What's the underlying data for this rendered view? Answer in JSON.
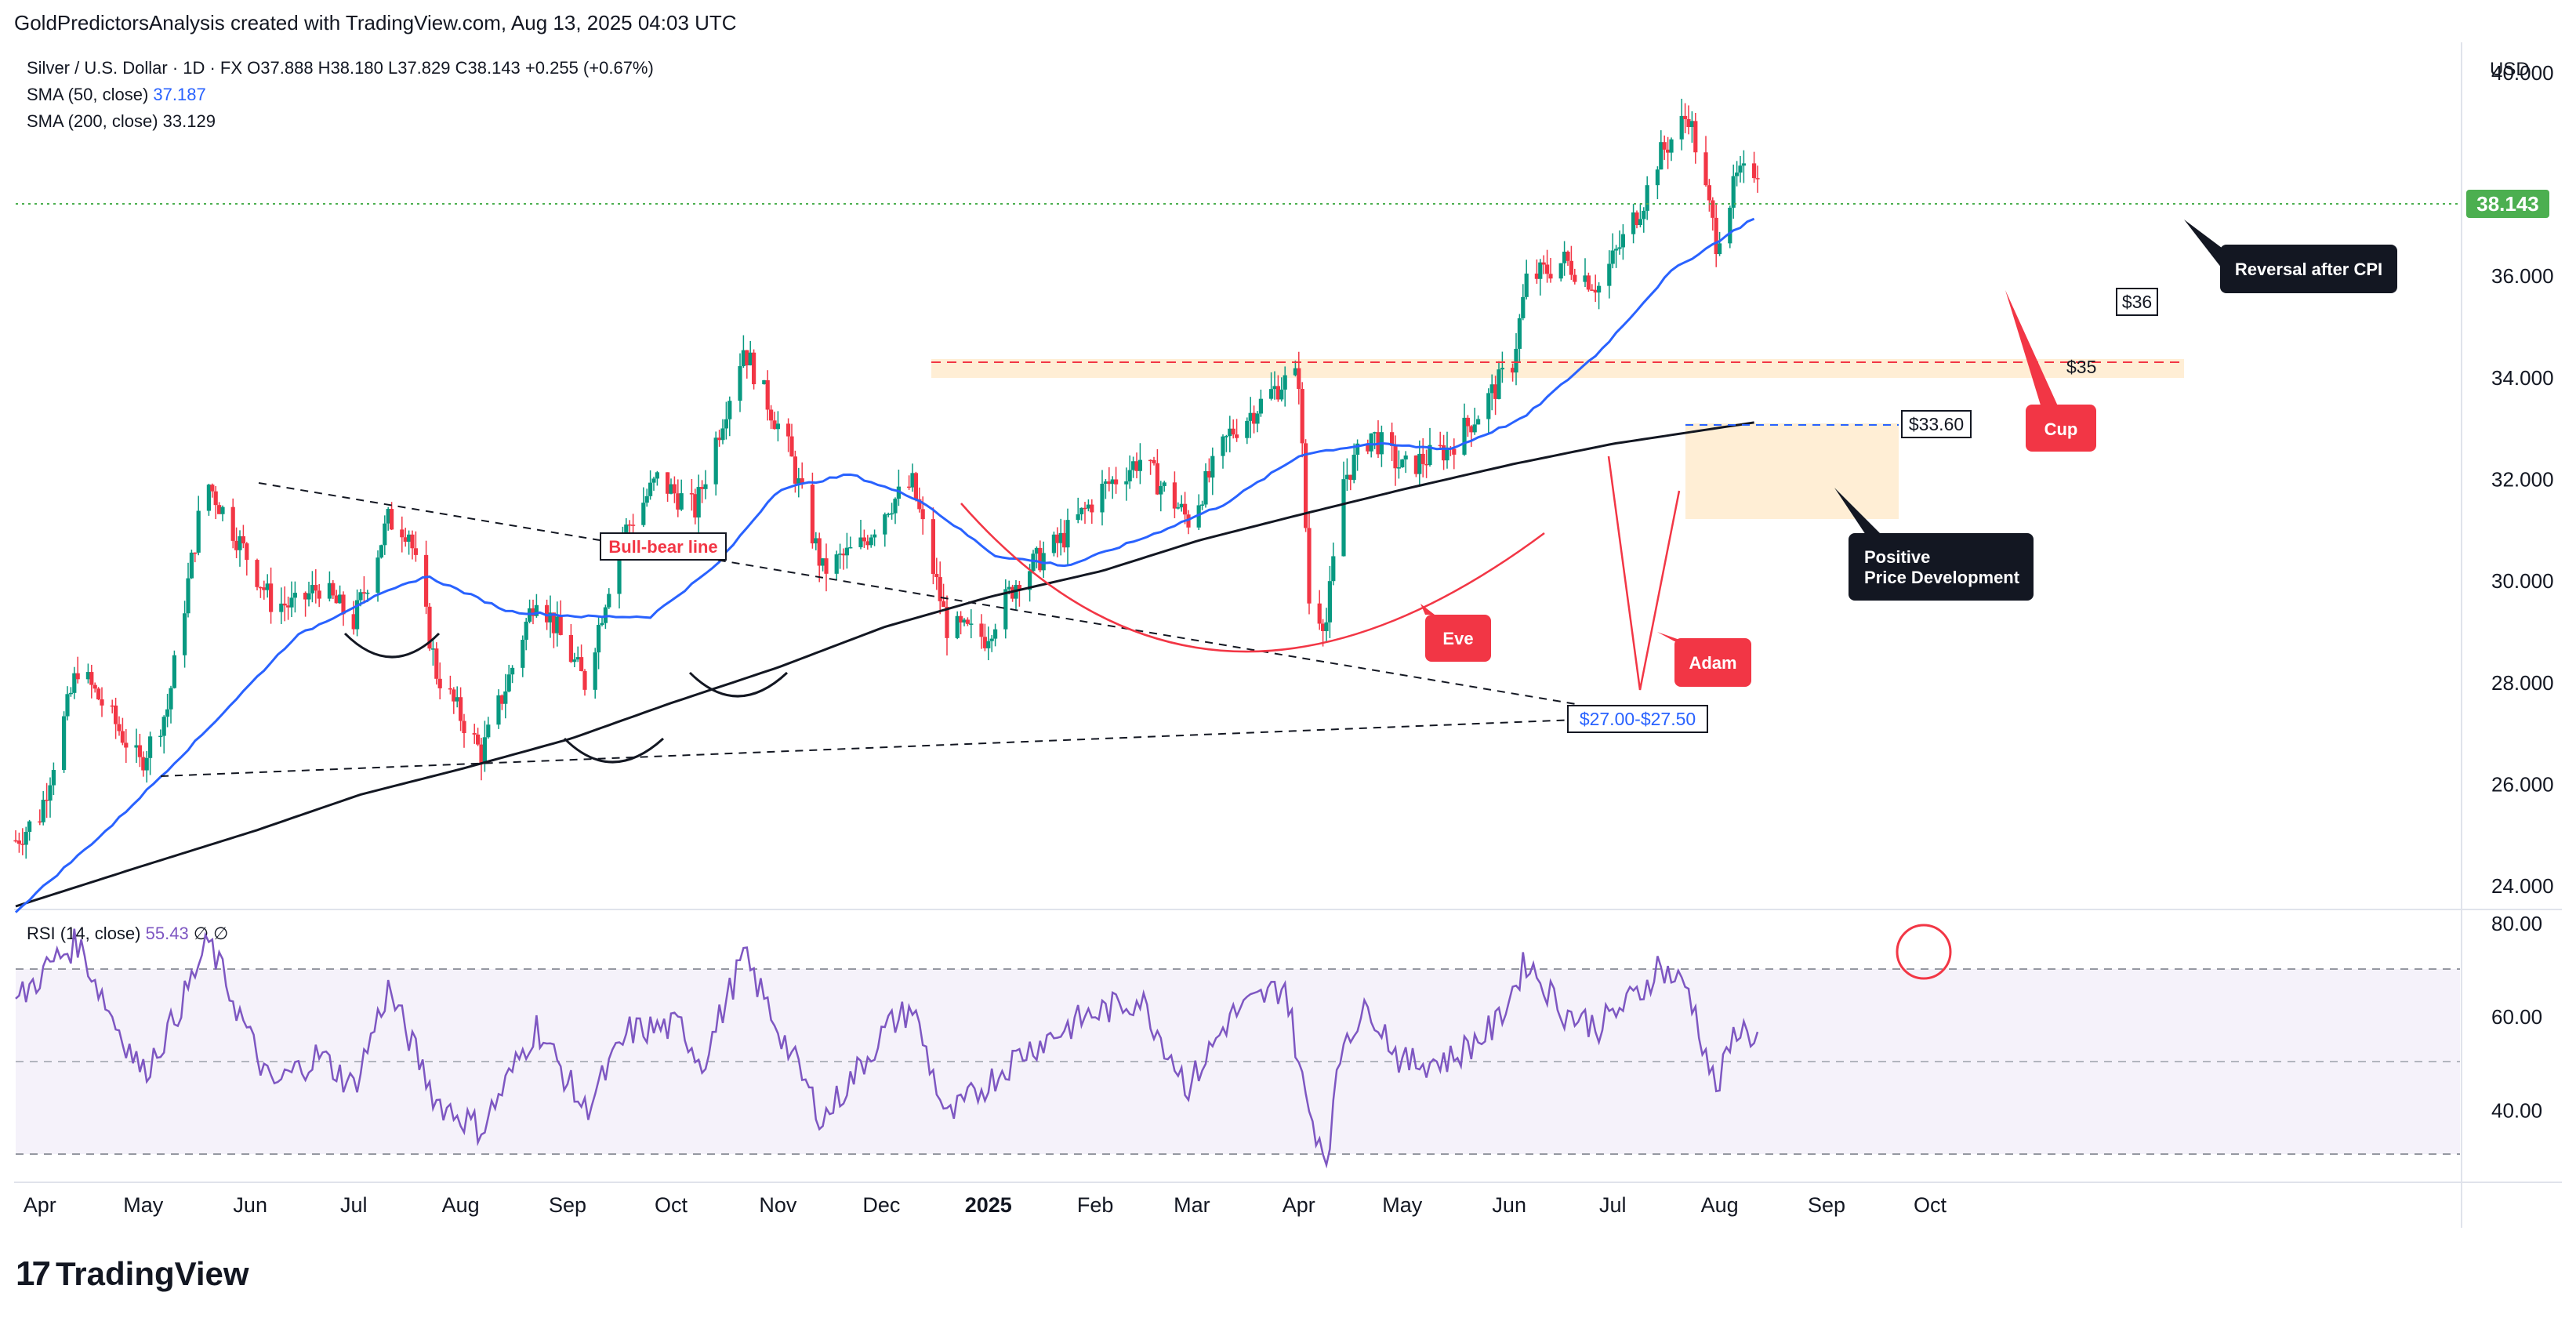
{
  "header": {
    "attribution": "GoldPredictorsAnalysis created with TradingView.com, Aug 13, 2025 04:03 UTC"
  },
  "legend": {
    "symbol": "Silver / U.S. Dollar · 1D · FX",
    "ohlc": "O37.888  H38.180  L37.829  C38.143",
    "change": "+0.255 (+0.67%)",
    "sma50_label": "SMA (50, close)",
    "sma50_value": "37.187",
    "sma200_label": "SMA (200, close)",
    "sma200_value": "33.129",
    "rsi_label": "RSI (14, close)",
    "rsi_value": "55.43",
    "rsi_extra": "∅  ∅"
  },
  "price_axis": {
    "currency": "USD",
    "ticks": [
      "40.000",
      "36.000",
      "34.000",
      "32.000",
      "30.000",
      "28.000",
      "26.000",
      "24.000"
    ],
    "last_price": "38.143"
  },
  "rsi_axis": {
    "ticks": [
      "80.00",
      "60.00",
      "40.00"
    ]
  },
  "time_axis": {
    "ticks": [
      "Apr",
      "May",
      "Jun",
      "Jul",
      "Aug",
      "Sep",
      "Oct",
      "Nov",
      "Dec",
      "2025",
      "Feb",
      "Mar",
      "Apr",
      "May",
      "Jun",
      "Jul",
      "Aug",
      "Sep",
      "Oct"
    ]
  },
  "annotations": {
    "bull_bear": "Bull-bear line",
    "eve": "Eve",
    "adam": "Adam",
    "cup": "Cup",
    "support_zone": "$27.00-$27.50",
    "level_3360": "$33.60",
    "level_35": "$35",
    "level_36": "$36",
    "positive_line1": "Positive",
    "positive_line2": "Price Development",
    "reversal": "Reversal after CPI"
  },
  "colors": {
    "up": "#089981",
    "down": "#f23645",
    "sma50": "#2962ff",
    "sma200": "#131722",
    "rsi": "#7e57c2",
    "last_price_bg": "#4caf50",
    "callout_red": "#f23645",
    "callout_dark": "#131722"
  },
  "footer": {
    "brand": "TradingView"
  },
  "chart_data": {
    "type": "candlestick",
    "title": "Silver / U.S. Dollar · 1D · FX",
    "y_range": [
      23.6,
      40.6
    ],
    "rsi_range": [
      26,
      82
    ],
    "x_ticks": [
      "Apr",
      "May",
      "Jun",
      "Jul",
      "Aug",
      "Sep",
      "Oct",
      "Nov",
      "Dec",
      "2025",
      "Feb",
      "Mar",
      "Apr",
      "May",
      "Jun",
      "Jul",
      "Aug",
      "Sep",
      "Oct"
    ],
    "anchors_date": [
      [
        "2024-03-25",
        24.9
      ],
      [
        "2024-04-01",
        25.4
      ],
      [
        "2024-04-12",
        28.3
      ],
      [
        "2024-04-22",
        27.3
      ],
      [
        "2024-04-30",
        26.4
      ],
      [
        "2024-05-08",
        27.5
      ],
      [
        "2024-05-17",
        31.2
      ],
      [
        "2024-05-20",
        31.9
      ],
      [
        "2024-06-07",
        29.6
      ],
      [
        "2024-06-14",
        29.5
      ],
      [
        "2024-06-21",
        29.9
      ],
      [
        "2024-07-01",
        29.2
      ],
      [
        "2024-07-11",
        31.2
      ],
      [
        "2024-07-17",
        31.0
      ],
      [
        "2024-07-25",
        28.2
      ],
      [
        "2024-08-07",
        26.6
      ],
      [
        "2024-08-15",
        28.1
      ],
      [
        "2024-08-23",
        29.8
      ],
      [
        "2024-09-06",
        28.0
      ],
      [
        "2024-09-16",
        30.8
      ],
      [
        "2024-09-27",
        32.0
      ],
      [
        "2024-10-08",
        31.4
      ],
      [
        "2024-10-22",
        34.6
      ],
      [
        "2024-11-04",
        32.6
      ],
      [
        "2024-11-14",
        30.2
      ],
      [
        "2024-11-25",
        30.7
      ],
      [
        "2024-12-03",
        31.5
      ],
      [
        "2024-12-10",
        31.9
      ],
      [
        "2024-12-20",
        29.1
      ],
      [
        "2024-12-31",
        28.9
      ],
      [
        "2025-01-10",
        30.1
      ],
      [
        "2025-01-22",
        30.8
      ],
      [
        "2025-02-03",
        31.8
      ],
      [
        "2025-02-14",
        32.4
      ],
      [
        "2025-02-28",
        31.2
      ],
      [
        "2025-03-12",
        32.9
      ],
      [
        "2025-03-27",
        33.9
      ],
      [
        "2025-04-01",
        34.0
      ],
      [
        "2025-04-04",
        29.6
      ],
      [
        "2025-04-09",
        29.2
      ],
      [
        "2025-04-14",
        32.0
      ],
      [
        "2025-04-22",
        32.9
      ],
      [
        "2025-05-01",
        32.2
      ],
      [
        "2025-05-14",
        32.6
      ],
      [
        "2025-05-23",
        33.3
      ],
      [
        "2025-06-02",
        34.3
      ],
      [
        "2025-06-06",
        35.9
      ],
      [
        "2025-06-17",
        36.3
      ],
      [
        "2025-06-27",
        35.8
      ],
      [
        "2025-07-10",
        37.5
      ],
      [
        "2025-07-14",
        38.3
      ],
      [
        "2025-07-23",
        39.2
      ],
      [
        "2025-07-31",
        36.7
      ],
      [
        "2025-08-06",
        37.9
      ],
      [
        "2025-08-12",
        38.14
      ]
    ],
    "sma50_anchors": [
      [
        "2024-03-25",
        23.5
      ],
      [
        "2024-04-22",
        25.2
      ],
      [
        "2024-05-17",
        26.9
      ],
      [
        "2024-06-14",
        28.9
      ],
      [
        "2024-07-04",
        29.6
      ],
      [
        "2024-07-22",
        30.1
      ],
      [
        "2024-08-15",
        29.4
      ],
      [
        "2024-09-06",
        29.3
      ],
      [
        "2024-09-25",
        29.3
      ],
      [
        "2024-10-14",
        30.3
      ],
      [
        "2024-11-01",
        31.8
      ],
      [
        "2024-11-22",
        32.1
      ],
      [
        "2024-12-12",
        31.6
      ],
      [
        "2025-01-03",
        30.5
      ],
      [
        "2025-01-24",
        30.3
      ],
      [
        "2025-02-17",
        30.9
      ],
      [
        "2025-03-10",
        31.5
      ],
      [
        "2025-04-02",
        32.5
      ],
      [
        "2025-04-22",
        32.7
      ],
      [
        "2025-05-15",
        32.6
      ],
      [
        "2025-06-05",
        33.2
      ],
      [
        "2025-06-27",
        34.5
      ],
      [
        "2025-07-18",
        36.1
      ],
      [
        "2025-08-12",
        37.19
      ]
    ],
    "sma200_anchors": [
      [
        "2024-03-25",
        23.6
      ],
      [
        "2024-05-01",
        24.4
      ],
      [
        "2024-06-03",
        25.1
      ],
      [
        "2024-07-03",
        25.8
      ],
      [
        "2024-08-01",
        26.3
      ],
      [
        "2024-09-02",
        26.9
      ],
      [
        "2024-10-01",
        27.6
      ],
      [
        "2024-11-01",
        28.3
      ],
      [
        "2024-12-02",
        29.1
      ],
      [
        "2025-01-02",
        29.7
      ],
      [
        "2025-02-03",
        30.2
      ],
      [
        "2025-03-03",
        30.8
      ],
      [
        "2025-04-01",
        31.3
      ],
      [
        "2025-05-01",
        31.8
      ],
      [
        "2025-06-02",
        32.3
      ],
      [
        "2025-07-01",
        32.7
      ],
      [
        "2025-08-12",
        33.13
      ]
    ],
    "rsi_anchors": [
      [
        "2024-03-25",
        63
      ],
      [
        "2024-04-05",
        72
      ],
      [
        "2024-04-12",
        76
      ],
      [
        "2024-04-22",
        60
      ],
      [
        "2024-05-01",
        48
      ],
      [
        "2024-05-09",
        58
      ],
      [
        "2024-05-20",
        76
      ],
      [
        "2024-06-07",
        45
      ],
      [
        "2024-06-21",
        52
      ],
      [
        "2024-07-01",
        45
      ],
      [
        "2024-07-11",
        66
      ],
      [
        "2024-07-25",
        42
      ],
      [
        "2024-08-07",
        36
      ],
      [
        "2024-08-23",
        58
      ],
      [
        "2024-09-06",
        40
      ],
      [
        "2024-09-19",
        57
      ],
      [
        "2024-10-04",
        58
      ],
      [
        "2024-10-10",
        50
      ],
      [
        "2024-10-22",
        73
      ],
      [
        "2024-11-14",
        38
      ],
      [
        "2024-12-03",
        58
      ],
      [
        "2024-12-10",
        62
      ],
      [
        "2024-12-20",
        38
      ],
      [
        "2025-01-10",
        52
      ],
      [
        "2025-01-29",
        60
      ],
      [
        "2025-02-14",
        64
      ],
      [
        "2025-02-28",
        45
      ],
      [
        "2025-03-12",
        60
      ],
      [
        "2025-03-28",
        67
      ],
      [
        "2025-04-03",
        42
      ],
      [
        "2025-04-09",
        30
      ],
      [
        "2025-04-14",
        56
      ],
      [
        "2025-04-22",
        62
      ],
      [
        "2025-05-01",
        50
      ],
      [
        "2025-05-15",
        51
      ],
      [
        "2025-05-28",
        58
      ],
      [
        "2025-06-06",
        72
      ],
      [
        "2025-06-17",
        61
      ],
      [
        "2025-06-27",
        58
      ],
      [
        "2025-07-10",
        66
      ],
      [
        "2025-07-14",
        71
      ],
      [
        "2025-07-23",
        66
      ],
      [
        "2025-07-31",
        44
      ],
      [
        "2025-08-06",
        58
      ],
      [
        "2025-08-12",
        55.43
      ]
    ]
  }
}
